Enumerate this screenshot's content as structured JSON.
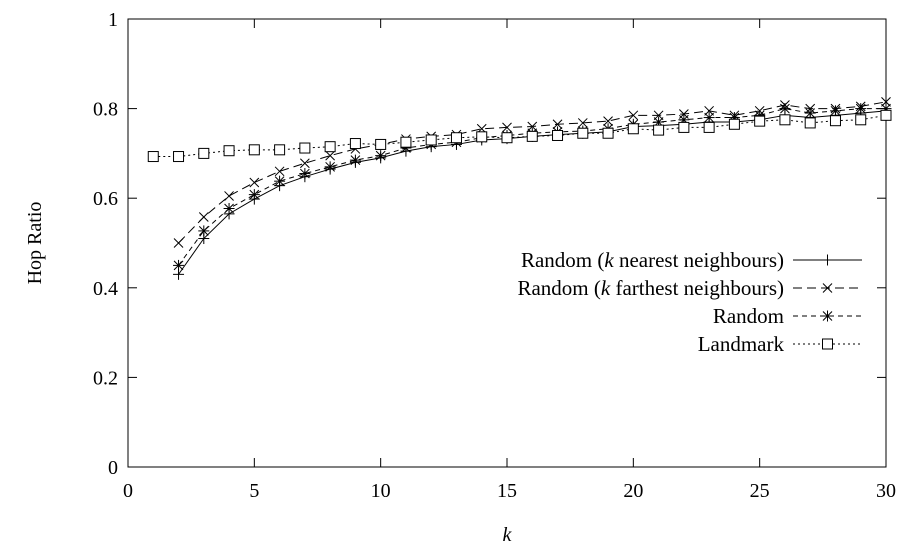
{
  "chart_data": {
    "type": "line",
    "title": "",
    "xlabel": "k",
    "ylabel": "Hop Ratio",
    "xlim": [
      0,
      30
    ],
    "ylim": [
      0,
      1
    ],
    "x_ticks": [
      "0",
      "5",
      "10",
      "15",
      "20",
      "25",
      "30"
    ],
    "y_ticks": [
      "0",
      "0.2",
      "0.4",
      "0.6",
      "0.8",
      "1"
    ],
    "grid": false,
    "legend_position": "right",
    "series": [
      {
        "name_prefix": "Random (",
        "name_italic": "k",
        "name_suffix": " nearest neighbours)",
        "line_style": "solid",
        "marker": "plus",
        "x": [
          2,
          3,
          4,
          5,
          6,
          7,
          8,
          9,
          10,
          11,
          12,
          13,
          14,
          15,
          16,
          17,
          18,
          19,
          20,
          21,
          22,
          23,
          24,
          25,
          26,
          27,
          28,
          29,
          30
        ],
        "values": [
          0.43,
          0.51,
          0.565,
          0.598,
          0.628,
          0.648,
          0.665,
          0.68,
          0.69,
          0.705,
          0.715,
          0.72,
          0.73,
          0.733,
          0.738,
          0.742,
          0.745,
          0.748,
          0.76,
          0.762,
          0.765,
          0.77,
          0.77,
          0.775,
          0.785,
          0.78,
          0.785,
          0.79,
          0.795
        ]
      },
      {
        "name_prefix": "Random (",
        "name_italic": "k",
        "name_suffix": " farthest neighbours)",
        "line_style": "dashed",
        "marker": "cross",
        "x": [
          2,
          3,
          4,
          5,
          6,
          7,
          8,
          9,
          10,
          11,
          12,
          13,
          14,
          15,
          16,
          17,
          18,
          19,
          20,
          21,
          22,
          23,
          24,
          25,
          26,
          27,
          28,
          29,
          30
        ],
        "values": [
          0.5,
          0.558,
          0.605,
          0.635,
          0.66,
          0.678,
          0.695,
          0.71,
          0.72,
          0.732,
          0.738,
          0.742,
          0.755,
          0.758,
          0.76,
          0.765,
          0.768,
          0.772,
          0.785,
          0.785,
          0.788,
          0.795,
          0.785,
          0.795,
          0.808,
          0.8,
          0.8,
          0.805,
          0.815
        ]
      },
      {
        "name": "Random",
        "line_style": "short-dashed",
        "marker": "star",
        "x": [
          2,
          3,
          4,
          5,
          6,
          7,
          8,
          9,
          10,
          11,
          12,
          13,
          14,
          15,
          16,
          17,
          18,
          19,
          20,
          21,
          22,
          23,
          24,
          25,
          26,
          27,
          28,
          29,
          30
        ],
        "values": [
          0.45,
          0.527,
          0.577,
          0.608,
          0.638,
          0.655,
          0.67,
          0.685,
          0.695,
          0.712,
          0.72,
          0.725,
          0.735,
          0.74,
          0.745,
          0.748,
          0.75,
          0.755,
          0.765,
          0.77,
          0.775,
          0.78,
          0.78,
          0.785,
          0.8,
          0.79,
          0.795,
          0.8,
          0.8
        ]
      },
      {
        "name": "Landmark",
        "line_style": "dotted",
        "marker": "square",
        "x": [
          1,
          2,
          3,
          4,
          5,
          6,
          7,
          8,
          9,
          10,
          11,
          12,
          13,
          14,
          15,
          16,
          17,
          18,
          19,
          20,
          21,
          22,
          23,
          24,
          25,
          26,
          27,
          28,
          29,
          30
        ],
        "values": [
          0.693,
          0.693,
          0.7,
          0.706,
          0.708,
          0.708,
          0.712,
          0.715,
          0.722,
          0.72,
          0.725,
          0.73,
          0.735,
          0.737,
          0.735,
          0.738,
          0.74,
          0.745,
          0.745,
          0.755,
          0.752,
          0.758,
          0.758,
          0.765,
          0.772,
          0.775,
          0.768,
          0.773,
          0.775,
          0.785
        ]
      }
    ]
  }
}
